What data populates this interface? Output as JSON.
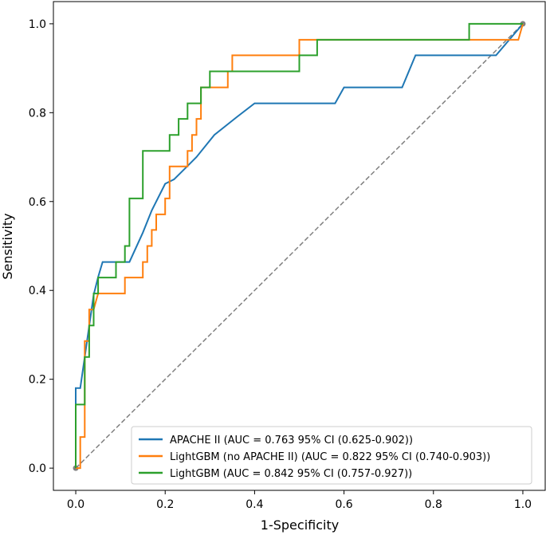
{
  "chart_data": {
    "type": "line",
    "title": "",
    "xlabel": "1-Specificity",
    "ylabel": "Sensitivity",
    "xlim": [
      -0.05,
      1.05
    ],
    "ylim": [
      -0.05,
      1.05
    ],
    "xticks": [
      "0.0",
      "0.2",
      "0.4",
      "0.6",
      "0.8",
      "1.0"
    ],
    "yticks": [
      "0.0",
      "0.2",
      "0.4",
      "0.6",
      "0.8",
      "1.0"
    ],
    "xtick_values": [
      0,
      0.2,
      0.4,
      0.6,
      0.8,
      1.0
    ],
    "ytick_values": [
      0,
      0.2,
      0.4,
      0.6,
      0.8,
      1.0
    ],
    "legend_position": "lower-right",
    "reference_line": {
      "x": [
        0,
        1
      ],
      "y": [
        0,
        1
      ],
      "color": "#808080",
      "style": "dashed"
    },
    "series": [
      {
        "name": "APACHE II (AUC = 0.763 95% CI (0.625-0.902))",
        "color": "#1f77b4",
        "x": [
          0,
          0,
          0.01,
          0.02,
          0.03,
          0.04,
          0.05,
          0.06,
          0.08,
          0.12,
          0.15,
          0.17,
          0.2,
          0.22,
          0.25,
          0.27,
          0.31,
          0.36,
          0.4,
          0.58,
          0.6,
          0.73,
          0.76,
          0.94,
          1.0
        ],
        "y": [
          0,
          0.18,
          0.18,
          0.25,
          0.32,
          0.39,
          0.43,
          0.464,
          0.464,
          0.464,
          0.53,
          0.58,
          0.64,
          0.65,
          0.68,
          0.7,
          0.75,
          0.79,
          0.821,
          0.821,
          0.857,
          0.857,
          0.929,
          0.929,
          1.0
        ]
      },
      {
        "name": "LightGBM (no APACHE II) (AUC = 0.822 95% CI (0.740-0.903))",
        "color": "#ff7f0e",
        "x": [
          0,
          0.01,
          0.01,
          0.02,
          0.02,
          0.03,
          0.03,
          0.04,
          0.05,
          0.11,
          0.11,
          0.15,
          0.15,
          0.16,
          0.16,
          0.17,
          0.17,
          0.18,
          0.18,
          0.2,
          0.2,
          0.21,
          0.21,
          0.25,
          0.25,
          0.26,
          0.26,
          0.27,
          0.27,
          0.28,
          0.28,
          0.34,
          0.34,
          0.35,
          0.35,
          0.5,
          0.5,
          0.88,
          0.88,
          0.99,
          1.0
        ],
        "y": [
          0,
          0,
          0.07,
          0.07,
          0.286,
          0.286,
          0.357,
          0.357,
          0.393,
          0.393,
          0.429,
          0.429,
          0.464,
          0.464,
          0.5,
          0.5,
          0.536,
          0.536,
          0.571,
          0.571,
          0.607,
          0.607,
          0.679,
          0.679,
          0.714,
          0.714,
          0.75,
          0.75,
          0.786,
          0.786,
          0.857,
          0.857,
          0.893,
          0.893,
          0.929,
          0.929,
          0.964,
          0.964,
          0.964,
          0.964,
          1.0
        ]
      },
      {
        "name": "LightGBM (AUC = 0.842 95% CI (0.757-0.927))",
        "color": "#2ca02c",
        "x": [
          0,
          0,
          0.01,
          0.01,
          0.02,
          0.02,
          0.03,
          0.03,
          0.04,
          0.04,
          0.05,
          0.05,
          0.09,
          0.09,
          0.11,
          0.11,
          0.12,
          0.12,
          0.15,
          0.15,
          0.21,
          0.21,
          0.23,
          0.23,
          0.25,
          0.25,
          0.27,
          0.27,
          0.28,
          0.28,
          0.3,
          0.3,
          0.5,
          0.5,
          0.54,
          0.54,
          0.88,
          0.88,
          1.0
        ],
        "y": [
          0,
          0.143,
          0.143,
          0.143,
          0.143,
          0.25,
          0.25,
          0.321,
          0.321,
          0.393,
          0.393,
          0.429,
          0.429,
          0.464,
          0.464,
          0.5,
          0.5,
          0.607,
          0.607,
          0.714,
          0.714,
          0.75,
          0.75,
          0.786,
          0.786,
          0.821,
          0.821,
          0.821,
          0.821,
          0.857,
          0.857,
          0.893,
          0.893,
          0.929,
          0.929,
          0.964,
          0.964,
          1.0,
          1.0
        ]
      }
    ]
  }
}
